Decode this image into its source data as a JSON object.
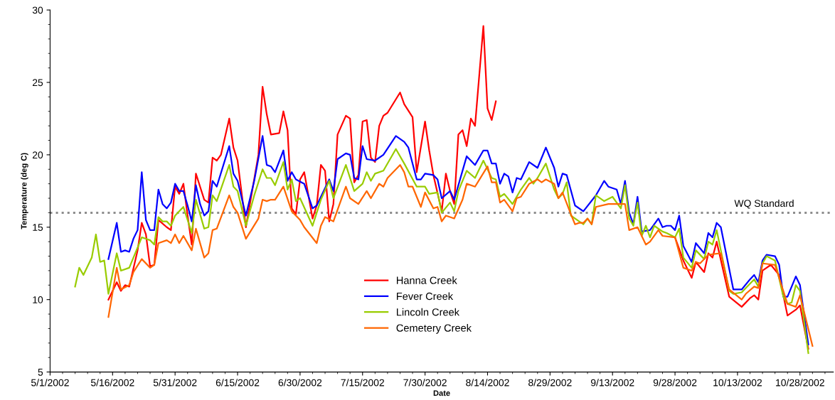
{
  "chart_data": {
    "type": "line",
    "xlabel": "Date",
    "ylabel": "Temperature (deg C)",
    "xlim": [
      "2002-05-01",
      "2002-11-05"
    ],
    "ylim": [
      5,
      30
    ],
    "yticks": [
      5,
      10,
      15,
      20,
      25,
      30
    ],
    "xticks": [
      {
        "value": "2002-05-01",
        "label": "5/1/2002"
      },
      {
        "value": "2002-05-16",
        "label": "5/16/2002"
      },
      {
        "value": "2002-05-31",
        "label": "5/31/2002"
      },
      {
        "value": "2002-06-15",
        "label": "6/15/2002"
      },
      {
        "value": "2002-06-30",
        "label": "6/30/2002"
      },
      {
        "value": "2002-07-15",
        "label": "7/15/2002"
      },
      {
        "value": "2002-07-30",
        "label": "7/30/2002"
      },
      {
        "value": "2002-08-14",
        "label": "8/14/2002"
      },
      {
        "value": "2002-08-29",
        "label": "8/29/2002"
      },
      {
        "value": "2002-09-13",
        "label": "9/13/2002"
      },
      {
        "value": "2002-09-28",
        "label": "9/28/2002"
      },
      {
        "value": "2002-10-13",
        "label": "10/13/2002"
      },
      {
        "value": "2002-10-28",
        "label": "10/28/2002"
      }
    ],
    "grid": false,
    "legend": "bottom",
    "marker": "none",
    "line_style": "solid",
    "ref_lines": [
      {
        "axis": "y",
        "value": 16,
        "label": "WQ Standard",
        "color": "#8c8c8c",
        "line_style": "dotted"
      }
    ],
    "series": [
      {
        "name": "Hanna Creek",
        "color": "#ff0000",
        "x": [
          "2002-05-15",
          "2002-05-17",
          "2002-05-18",
          "2002-05-19",
          "2002-05-20",
          "2002-05-22",
          "2002-05-23",
          "2002-05-24",
          "2002-05-25",
          "2002-05-26",
          "2002-05-27",
          "2002-05-29",
          "2002-05-30",
          "2002-05-31",
          "2002-06-01",
          "2002-06-02",
          "2002-06-03",
          "2002-06-04",
          "2002-06-05",
          "2002-06-06",
          "2002-06-07",
          "2002-06-08",
          "2002-06-09",
          "2002-06-10",
          "2002-06-11",
          "2002-06-13",
          "2002-06-14",
          "2002-06-15",
          "2002-06-17",
          "2002-06-20",
          "2002-06-21",
          "2002-06-22",
          "2002-06-23",
          "2002-06-25",
          "2002-06-26",
          "2002-06-27",
          "2002-06-28",
          "2002-06-29",
          "2002-06-30",
          "2002-07-01",
          "2002-07-03",
          "2002-07-04",
          "2002-07-05",
          "2002-07-06",
          "2002-07-07",
          "2002-07-08",
          "2002-07-09",
          "2002-07-11",
          "2002-07-12",
          "2002-07-13",
          "2002-07-14",
          "2002-07-15",
          "2002-07-16",
          "2002-07-17",
          "2002-07-18",
          "2002-07-19",
          "2002-07-20",
          "2002-07-21",
          "2002-07-24",
          "2002-07-25",
          "2002-07-27",
          "2002-07-28",
          "2002-07-30",
          "2002-07-31",
          "2002-08-01",
          "2002-08-03",
          "2002-08-04",
          "2002-08-05",
          "2002-08-06",
          "2002-08-07",
          "2002-08-08",
          "2002-08-09",
          "2002-08-10",
          "2002-08-11",
          "2002-08-13",
          "2002-08-14",
          "2002-08-15",
          "2002-08-16",
          "2002-08-17",
          "2002-09-28",
          "2002-09-30",
          "2002-10-02",
          "2002-10-03",
          "2002-10-05",
          "2002-10-06",
          "2002-10-07",
          "2002-10-08",
          "2002-10-11",
          "2002-10-14",
          "2002-10-16",
          "2002-10-17",
          "2002-10-18",
          "2002-10-19",
          "2002-10-21",
          "2002-10-23",
          "2002-10-25",
          "2002-10-27",
          "2002-10-28",
          "2002-10-30"
        ],
        "values": [
          10.0,
          11.2,
          10.6,
          11.0,
          10.9,
          13.4,
          15.3,
          14.5,
          12.3,
          12.4,
          15.5,
          15.0,
          14.8,
          17.8,
          17.3,
          18.0,
          15.8,
          13.8,
          18.7,
          17.8,
          16.9,
          16.7,
          19.8,
          19.6,
          20.0,
          22.5,
          20.5,
          19.6,
          15.0,
          20.0,
          24.7,
          22.8,
          21.4,
          21.5,
          23.0,
          21.7,
          16.3,
          15.9,
          18.3,
          18.8,
          15.6,
          16.5,
          19.3,
          18.9,
          15.4,
          16.6,
          21.4,
          22.7,
          22.5,
          18.1,
          18.6,
          22.3,
          22.4,
          19.8,
          19.5,
          22.0,
          22.7,
          22.9,
          24.3,
          23.5,
          22.6,
          18.8,
          22.3,
          20.3,
          18.6,
          16.1,
          18.7,
          17.5,
          16.6,
          21.4,
          21.7,
          20.6,
          22.5,
          22.0,
          28.9,
          23.2,
          22.4,
          23.7,
          null,
          14.3,
          12.7,
          11.5,
          12.6,
          11.9,
          13.2,
          12.9,
          14.0,
          10.2,
          9.5,
          10.1,
          10.3,
          10.0,
          12.0,
          12.4,
          11.7,
          8.9,
          9.3,
          9.6,
          6.6
        ]
      },
      {
        "name": "Fever Creek",
        "color": "#0000ff",
        "x": [
          "2002-05-15",
          "2002-05-17",
          "2002-05-18",
          "2002-05-19",
          "2002-05-20",
          "2002-05-21",
          "2002-05-22",
          "2002-05-23",
          "2002-05-24",
          "2002-05-25",
          "2002-05-26",
          "2002-05-27",
          "2002-05-28",
          "2002-05-29",
          "2002-05-30",
          "2002-05-31",
          "2002-06-01",
          "2002-06-02",
          "2002-06-03",
          "2002-06-04",
          "2002-06-05",
          "2002-06-06",
          "2002-06-07",
          "2002-06-08",
          "2002-06-09",
          "2002-06-10",
          "2002-06-13",
          "2002-06-14",
          "2002-06-15",
          "2002-06-17",
          "2002-06-19",
          "2002-06-21",
          "2002-06-22",
          "2002-06-23",
          "2002-06-24",
          "2002-06-26",
          "2002-06-27",
          "2002-06-28",
          "2002-06-29",
          "2002-07-01",
          "2002-07-03",
          "2002-07-04",
          "2002-07-07",
          "2002-07-08",
          "2002-07-09",
          "2002-07-11",
          "2002-07-12",
          "2002-07-13",
          "2002-07-14",
          "2002-07-15",
          "2002-07-16",
          "2002-07-18",
          "2002-07-20",
          "2002-07-23",
          "2002-07-25",
          "2002-07-26",
          "2002-07-28",
          "2002-07-29",
          "2002-07-30",
          "2002-08-01",
          "2002-08-02",
          "2002-08-03",
          "2002-08-05",
          "2002-08-06",
          "2002-08-09",
          "2002-08-11",
          "2002-08-13",
          "2002-08-14",
          "2002-08-15",
          "2002-08-16",
          "2002-08-17",
          "2002-08-18",
          "2002-08-19",
          "2002-08-20",
          "2002-08-21",
          "2002-08-22",
          "2002-08-24",
          "2002-08-26",
          "2002-08-28",
          "2002-08-30",
          "2002-08-31",
          "2002-09-01",
          "2002-09-02",
          "2002-09-04",
          "2002-09-06",
          "2002-09-09",
          "2002-09-11",
          "2002-09-12",
          "2002-09-14",
          "2002-09-15",
          "2002-09-16",
          "2002-09-17",
          "2002-09-18",
          "2002-09-19",
          "2002-09-20",
          "2002-09-22",
          "2002-09-24",
          "2002-09-25",
          "2002-09-26",
          "2002-09-27",
          "2002-09-28",
          "2002-09-29",
          "2002-09-30",
          "2002-10-02",
          "2002-10-03",
          "2002-10-05",
          "2002-10-06",
          "2002-10-07",
          "2002-10-08",
          "2002-10-09",
          "2002-10-12",
          "2002-10-14",
          "2002-10-16",
          "2002-10-17",
          "2002-10-18",
          "2002-10-19",
          "2002-10-20",
          "2002-10-22",
          "2002-10-23",
          "2002-10-24",
          "2002-10-25",
          "2002-10-27",
          "2002-10-28",
          "2002-10-30"
        ],
        "values": [
          12.8,
          15.3,
          13.3,
          13.4,
          13.3,
          14.2,
          14.8,
          18.8,
          15.5,
          14.8,
          14.8,
          17.6,
          16.6,
          16.3,
          16.7,
          18.0,
          17.5,
          17.5,
          16.5,
          15.4,
          17.9,
          16.6,
          15.8,
          16.1,
          18.2,
          17.8,
          20.6,
          18.7,
          18.2,
          15.8,
          18.2,
          21.3,
          19.3,
          19.2,
          18.8,
          20.3,
          18.2,
          18.8,
          18.3,
          18.0,
          16.3,
          16.5,
          18.3,
          17.5,
          19.7,
          20.1,
          20.0,
          18.4,
          18.3,
          20.6,
          19.7,
          19.6,
          20.0,
          21.3,
          20.9,
          20.5,
          18.3,
          18.3,
          18.7,
          18.6,
          18.3,
          17.0,
          17.5,
          16.9,
          19.9,
          19.3,
          20.3,
          20.3,
          19.4,
          19.4,
          18.0,
          18.7,
          18.5,
          17.4,
          18.4,
          18.3,
          19.5,
          19.1,
          20.5,
          19.1,
          17.8,
          18.7,
          18.6,
          16.5,
          16.1,
          17.2,
          18.2,
          17.8,
          17.6,
          16.6,
          18.2,
          16.0,
          15.2,
          17.1,
          14.7,
          14.8,
          15.6,
          15.0,
          15.1,
          15.1,
          14.8,
          15.8,
          13.7,
          12.6,
          13.9,
          13.2,
          14.6,
          14.3,
          15.3,
          15.0,
          10.7,
          10.7,
          11.4,
          11.7,
          11.2,
          12.7,
          13.1,
          13.0,
          12.4,
          10.2,
          10.2,
          11.6,
          11.0,
          6.9
        ]
      },
      {
        "name": "Lincoln Creek",
        "color": "#99cc00",
        "x": [
          "2002-05-07",
          "2002-05-08",
          "2002-05-09",
          "2002-05-11",
          "2002-05-12",
          "2002-05-13",
          "2002-05-14",
          "2002-05-15",
          "2002-05-17",
          "2002-05-18",
          "2002-05-20",
          "2002-05-21",
          "2002-05-23",
          "2002-05-25",
          "2002-05-26",
          "2002-05-27",
          "2002-05-28",
          "2002-05-29",
          "2002-05-30",
          "2002-05-31",
          "2002-06-02",
          "2002-06-04",
          "2002-06-05",
          "2002-06-07",
          "2002-06-08",
          "2002-06-09",
          "2002-06-10",
          "2002-06-13",
          "2002-06-14",
          "2002-06-15",
          "2002-06-17",
          "2002-06-19",
          "2002-06-21",
          "2002-06-22",
          "2002-06-23",
          "2002-06-24",
          "2002-06-26",
          "2002-06-27",
          "2002-06-28",
          "2002-06-29",
          "2002-06-30",
          "2002-07-03",
          "2002-07-05",
          "2002-07-07",
          "2002-07-08",
          "2002-07-11",
          "2002-07-13",
          "2002-07-15",
          "2002-07-16",
          "2002-07-17",
          "2002-07-18",
          "2002-07-20",
          "2002-07-23",
          "2002-07-25",
          "2002-07-28",
          "2002-07-30",
          "2002-07-31",
          "2002-08-02",
          "2002-08-03",
          "2002-08-05",
          "2002-08-06",
          "2002-08-07",
          "2002-08-09",
          "2002-08-11",
          "2002-08-13",
          "2002-08-15",
          "2002-08-16",
          "2002-08-17",
          "2002-08-18",
          "2002-08-20",
          "2002-08-22",
          "2002-08-24",
          "2002-08-25",
          "2002-08-26",
          "2002-08-28",
          "2002-08-30",
          "2002-08-31",
          "2002-09-01",
          "2002-09-02",
          "2002-09-03",
          "2002-09-05",
          "2002-09-06",
          "2002-09-07",
          "2002-09-08",
          "2002-09-09",
          "2002-09-11",
          "2002-09-13",
          "2002-09-15",
          "2002-09-16",
          "2002-09-17",
          "2002-09-18",
          "2002-09-19",
          "2002-09-20",
          "2002-09-21",
          "2002-09-22",
          "2002-09-23",
          "2002-09-25",
          "2002-09-26",
          "2002-09-28",
          "2002-09-29",
          "2002-09-30",
          "2002-10-02",
          "2002-10-03",
          "2002-10-05",
          "2002-10-06",
          "2002-10-07",
          "2002-10-08",
          "2002-10-11",
          "2002-10-12",
          "2002-10-14",
          "2002-10-16",
          "2002-10-17",
          "2002-10-18",
          "2002-10-19",
          "2002-10-20",
          "2002-10-22",
          "2002-10-24",
          "2002-10-25",
          "2002-10-26",
          "2002-10-27",
          "2002-10-28",
          "2002-10-30"
        ],
        "values": [
          10.9,
          12.2,
          11.7,
          12.9,
          14.5,
          12.6,
          12.7,
          10.4,
          13.2,
          12.0,
          12.2,
          12.9,
          14.3,
          14.1,
          13.8,
          15.7,
          15.4,
          15.4,
          15.1,
          15.8,
          16.4,
          14.6,
          16.9,
          14.9,
          15.0,
          17.2,
          16.8,
          19.3,
          17.8,
          17.5,
          15.1,
          17.2,
          19.0,
          18.4,
          18.4,
          17.9,
          19.5,
          17.6,
          18.3,
          16.8,
          17.0,
          15.1,
          16.9,
          18.2,
          17.0,
          19.3,
          17.5,
          18.0,
          18.8,
          18.2,
          18.7,
          18.9,
          20.4,
          19.4,
          17.8,
          17.8,
          17.3,
          17.4,
          16.0,
          16.7,
          16.1,
          17.5,
          18.9,
          18.4,
          19.6,
          18.4,
          18.3,
          17.1,
          17.3,
          16.6,
          17.6,
          18.4,
          18.0,
          18.4,
          19.4,
          17.6,
          17.0,
          17.3,
          18.1,
          15.8,
          15.4,
          15.2,
          15.6,
          15.2,
          17.2,
          16.8,
          17.1,
          16.3,
          17.9,
          15.6,
          15.1,
          16.7,
          14.4,
          15.1,
          14.3,
          15.1,
          14.7,
          14.6,
          14.3,
          14.9,
          12.9,
          12.2,
          13.4,
          12.8,
          14.0,
          13.8,
          14.8,
          10.6,
          10.4,
          10.5,
          11.1,
          11.4,
          10.9,
          12.5,
          13.0,
          12.7,
          10.2,
          9.7,
          9.8,
          11.0,
          10.6,
          6.3
        ]
      },
      {
        "name": "Cemetery Creek",
        "color": "#ff6600",
        "x": [
          "2002-05-15",
          "2002-05-17",
          "2002-05-18",
          "2002-05-20",
          "2002-05-21",
          "2002-05-23",
          "2002-05-25",
          "2002-05-26",
          "2002-05-27",
          "2002-05-29",
          "2002-05-30",
          "2002-05-31",
          "2002-06-01",
          "2002-06-02",
          "2002-06-04",
          "2002-06-05",
          "2002-06-07",
          "2002-06-08",
          "2002-06-09",
          "2002-06-10",
          "2002-06-13",
          "2002-06-14",
          "2002-06-15",
          "2002-06-17",
          "2002-06-20",
          "2002-06-21",
          "2002-06-22",
          "2002-06-23",
          "2002-06-24",
          "2002-06-26",
          "2002-06-28",
          "2002-06-30",
          "2002-07-01",
          "2002-07-04",
          "2002-07-05",
          "2002-07-06",
          "2002-07-08",
          "2002-07-11",
          "2002-07-12",
          "2002-07-14",
          "2002-07-16",
          "2002-07-17",
          "2002-07-19",
          "2002-07-20",
          "2002-07-21",
          "2002-07-24",
          "2002-07-25",
          "2002-07-26",
          "2002-07-27",
          "2002-07-29",
          "2002-07-30",
          "2002-08-01",
          "2002-08-02",
          "2002-08-03",
          "2002-08-04",
          "2002-08-06",
          "2002-08-08",
          "2002-08-09",
          "2002-08-11",
          "2002-08-14",
          "2002-08-15",
          "2002-08-16",
          "2002-08-17",
          "2002-08-18",
          "2002-08-20",
          "2002-08-21",
          "2002-08-22",
          "2002-08-24",
          "2002-08-26",
          "2002-08-27",
          "2002-08-28",
          "2002-08-30",
          "2002-08-31",
          "2002-09-01",
          "2002-09-03",
          "2002-09-04",
          "2002-09-05",
          "2002-09-06",
          "2002-09-07",
          "2002-09-08",
          "2002-09-09",
          "2002-09-12",
          "2002-09-15",
          "2002-09-16",
          "2002-09-17",
          "2002-09-19",
          "2002-09-21",
          "2002-09-22",
          "2002-09-24",
          "2002-09-25",
          "2002-09-28",
          "2002-09-30",
          "2002-10-02",
          "2002-10-03",
          "2002-10-04",
          "2002-10-06",
          "2002-10-09",
          "2002-10-11",
          "2002-10-14",
          "2002-10-15",
          "2002-10-17",
          "2002-10-18",
          "2002-10-19",
          "2002-10-22",
          "2002-10-25",
          "2002-10-27",
          "2002-10-28",
          "2002-10-31"
        ],
        "values": [
          8.8,
          12.2,
          10.7,
          11.0,
          11.9,
          12.8,
          12.2,
          12.4,
          13.9,
          14.1,
          13.9,
          14.5,
          13.9,
          14.4,
          13.4,
          14.9,
          12.9,
          13.2,
          14.8,
          14.9,
          17.2,
          16.4,
          16.0,
          14.2,
          15.6,
          16.9,
          16.8,
          16.9,
          16.9,
          17.8,
          16.1,
          15.5,
          15.0,
          13.9,
          15.1,
          15.7,
          15.4,
          17.8,
          17.0,
          16.6,
          17.5,
          17.0,
          18.0,
          17.8,
          18.4,
          19.3,
          18.8,
          17.8,
          17.8,
          16.4,
          17.4,
          16.3,
          16.4,
          15.4,
          15.8,
          15.6,
          16.9,
          18.0,
          17.8,
          19.2,
          18.1,
          18.1,
          16.7,
          16.9,
          16.1,
          17.0,
          17.1,
          18.0,
          18.3,
          18.1,
          18.3,
          18.0,
          17.0,
          17.4,
          15.9,
          15.2,
          15.3,
          15.3,
          15.6,
          15.2,
          16.4,
          16.6,
          16.6,
          16.6,
          14.8,
          15.0,
          13.8,
          14.0,
          14.8,
          14.4,
          14.3,
          12.2,
          12.0,
          12.6,
          12.5,
          13.1,
          13.2,
          10.7,
          10.0,
          10.4,
          10.9,
          10.8,
          12.5,
          12.4,
          9.7,
          9.5,
          10.3,
          6.8
        ]
      }
    ]
  }
}
